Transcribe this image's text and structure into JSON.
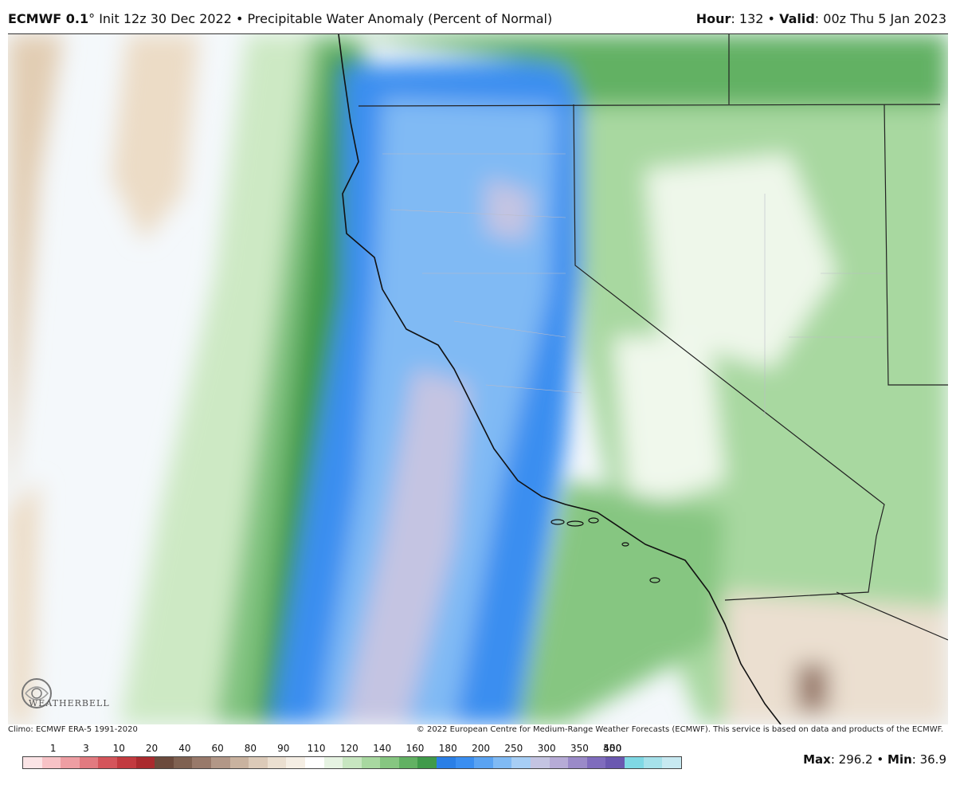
{
  "header": {
    "model": "ECMWF 0.1",
    "degree": "°",
    "init": "Init 12z 30 Dec 2022",
    "bullet": "•",
    "field": "Precipitable Water Anomaly (Percent of Normal)",
    "hour_label": "Hour",
    "hour_value": ": 132",
    "valid_label": "Valid",
    "valid_value": ": 00z Thu 5 Jan 2023"
  },
  "credits": {
    "climo": "Climo: ECMWF ERA-5 1991-2020",
    "copyright": "© 2022 European Centre for Medium-Range Weather Forecasts (ECMWF). This service is based on data and products of the ECMWF."
  },
  "logo": {
    "text": "WEATHERBELL",
    "icon": "weatherbell-swirl-logo"
  },
  "legend": {
    "labels": [
      "1",
      "3",
      "10",
      "20",
      "40",
      "60",
      "80",
      "90",
      "110",
      "120",
      "140",
      "160",
      "180",
      "200",
      "250",
      "300",
      "350",
      "400",
      "450",
      "500"
    ],
    "colors": [
      "#fbe4e6",
      "#f7c2c6",
      "#ee9ea3",
      "#e27a80",
      "#d4555b",
      "#c23a3f",
      "#aa2a2e",
      "#6b4a3c",
      "#7f6151",
      "#98796a",
      "#b29787",
      "#c9b29f",
      "#dccab8",
      "#ebdfd0",
      "#f5eee4",
      "#ffffff",
      "#e6f3e2",
      "#c7e6c0",
      "#a8d8a0",
      "#86c681",
      "#62b163",
      "#3f9a4a",
      "#2a7fe6",
      "#3a8ef0",
      "#5aa3f2",
      "#80baf4",
      "#a7cef5",
      "#c4c4e2",
      "#b6abd6",
      "#9a8ac8",
      "#7f6cbd",
      "#6a58b0",
      "#7fd8e4",
      "#a6e1ea",
      "#c7e9f1"
    ]
  },
  "stats": {
    "max_label": "Max",
    "max_value": ": 296.2",
    "sep": "•",
    "min_label": "Min",
    "min_value": ": 36.9"
  }
}
